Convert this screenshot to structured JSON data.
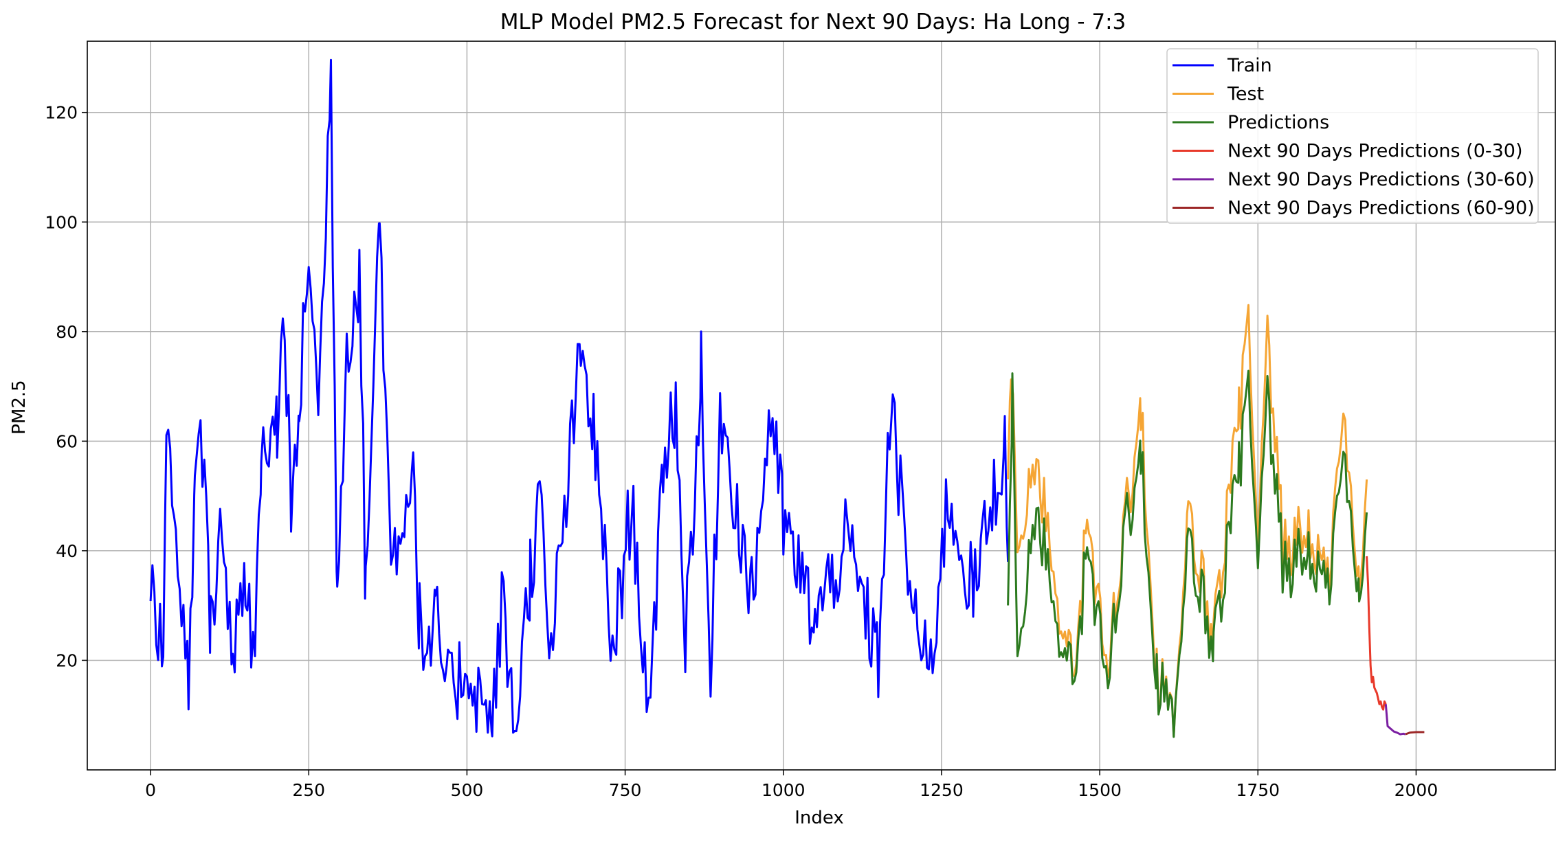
{
  "chart_data": {
    "type": "line",
    "title": "MLP Model PM2.5 Forecast for Next 90 Days: Ha Long - 7:3",
    "xlabel": "Index",
    "ylabel": "PM2.5",
    "xlim": [
      -100,
      2220
    ],
    "ylim": [
      0,
      133
    ],
    "xticks": [
      0,
      250,
      500,
      750,
      1000,
      1250,
      1500,
      1750,
      2000
    ],
    "yticks": [
      20,
      40,
      60,
      80,
      100,
      120
    ],
    "grid": true,
    "legend_position": "top-right",
    "series": [
      {
        "name": "Train",
        "color": "#0000ff",
        "anchors": [
          [
            0,
            36.5
          ],
          [
            20,
            22
          ],
          [
            25,
            57
          ],
          [
            40,
            46
          ],
          [
            60,
            15
          ],
          [
            70,
            54
          ],
          [
            85,
            58
          ],
          [
            95,
            26
          ],
          [
            110,
            47
          ],
          [
            130,
            20
          ],
          [
            150,
            32
          ],
          [
            165,
            20
          ],
          [
            175,
            57
          ],
          [
            200,
            63
          ],
          [
            212,
            84
          ],
          [
            222,
            45
          ],
          [
            235,
            65
          ],
          [
            250,
            97
          ],
          [
            265,
            64
          ],
          [
            285,
            127
          ],
          [
            295,
            33
          ],
          [
            310,
            78
          ],
          [
            330,
            90
          ],
          [
            340,
            33
          ],
          [
            362,
            102
          ],
          [
            380,
            37
          ],
          [
            415,
            56
          ],
          [
            425,
            27
          ],
          [
            440,
            19
          ],
          [
            450,
            28
          ],
          [
            470,
            14
          ],
          [
            500,
            19
          ],
          [
            540,
            7
          ],
          [
            555,
            31
          ],
          [
            575,
            7
          ],
          [
            600,
            36
          ],
          [
            615,
            50
          ],
          [
            630,
            19
          ],
          [
            680,
            76
          ],
          [
            700,
            62
          ],
          [
            730,
            21
          ],
          [
            760,
            49
          ],
          [
            790,
            8
          ],
          [
            810,
            57
          ],
          [
            830,
            67
          ],
          [
            845,
            24
          ],
          [
            870,
            72
          ],
          [
            885,
            14
          ],
          [
            900,
            67
          ],
          [
            950,
            31
          ],
          [
            980,
            66
          ],
          [
            1000,
            45
          ],
          [
            1050,
            27
          ],
          [
            1100,
            42
          ],
          [
            1150,
            20
          ],
          [
            1170,
            67
          ],
          [
            1200,
            33
          ],
          [
            1230,
            16
          ],
          [
            1260,
            50
          ],
          [
            1300,
            32
          ],
          [
            1350,
            60
          ],
          [
            1355,
            38
          ]
        ],
        "noise": 8
      },
      {
        "name": "Test",
        "color": "#f5a534",
        "anchors": [
          [
            1355,
            58
          ],
          [
            1360,
            74
          ],
          [
            1370,
            38
          ],
          [
            1400,
            57
          ],
          [
            1430,
            34
          ],
          [
            1460,
            16
          ],
          [
            1480,
            46
          ],
          [
            1510,
            17
          ],
          [
            1540,
            46
          ],
          [
            1565,
            65
          ],
          [
            1590,
            18
          ],
          [
            1620,
            8
          ],
          [
            1640,
            46
          ],
          [
            1680,
            25
          ],
          [
            1720,
            65
          ],
          [
            1735,
            81
          ],
          [
            1750,
            38
          ],
          [
            1765,
            78
          ],
          [
            1790,
            40
          ],
          [
            1830,
            44
          ],
          [
            1860,
            34
          ],
          [
            1885,
            64
          ],
          [
            1910,
            33
          ],
          [
            1922,
            53
          ]
        ],
        "noise": 6
      },
      {
        "name": "Predictions",
        "color": "#2c7a1f",
        "anchors": [
          [
            1355,
            35
          ],
          [
            1362,
            67
          ],
          [
            1370,
            19
          ],
          [
            1400,
            48
          ],
          [
            1430,
            29
          ],
          [
            1460,
            15
          ],
          [
            1480,
            41
          ],
          [
            1510,
            15
          ],
          [
            1540,
            44
          ],
          [
            1565,
            57
          ],
          [
            1590,
            17
          ],
          [
            1620,
            8
          ],
          [
            1640,
            41
          ],
          [
            1680,
            23
          ],
          [
            1720,
            55
          ],
          [
            1735,
            69
          ],
          [
            1750,
            35
          ],
          [
            1765,
            67
          ],
          [
            1790,
            36
          ],
          [
            1830,
            40
          ],
          [
            1860,
            32
          ],
          [
            1885,
            57
          ],
          [
            1910,
            31
          ],
          [
            1922,
            47
          ]
        ],
        "noise": 6
      },
      {
        "name": "Next 90 Days Predictions (0-30)",
        "color": "#e8392a",
        "points": [
          [
            1922,
            39
          ],
          [
            1924,
            34
          ],
          [
            1926,
            26
          ],
          [
            1928,
            19
          ],
          [
            1930,
            16
          ],
          [
            1932,
            17
          ],
          [
            1934,
            15
          ],
          [
            1936,
            14.5
          ],
          [
            1938,
            14
          ],
          [
            1940,
            13
          ],
          [
            1942,
            12
          ],
          [
            1944,
            12.5
          ],
          [
            1946,
            11.5
          ],
          [
            1948,
            11
          ],
          [
            1950,
            12.5
          ],
          [
            1952,
            12
          ]
        ]
      },
      {
        "name": "Next 90 Days Predictions (30-60)",
        "color": "#7b1fa2",
        "points": [
          [
            1952,
            12
          ],
          [
            1955,
            8
          ],
          [
            1960,
            7.5
          ],
          [
            1965,
            7
          ],
          [
            1970,
            6.8
          ],
          [
            1975,
            6.5
          ],
          [
            1980,
            6.6
          ],
          [
            1983,
            6.5
          ]
        ]
      },
      {
        "name": "Next 90 Days Predictions (60-90)",
        "color": "#9c2727",
        "points": [
          [
            1983,
            6.5
          ],
          [
            1990,
            6.8
          ],
          [
            2000,
            6.9
          ],
          [
            2010,
            6.9
          ],
          [
            2013,
            6.9
          ]
        ]
      }
    ]
  }
}
